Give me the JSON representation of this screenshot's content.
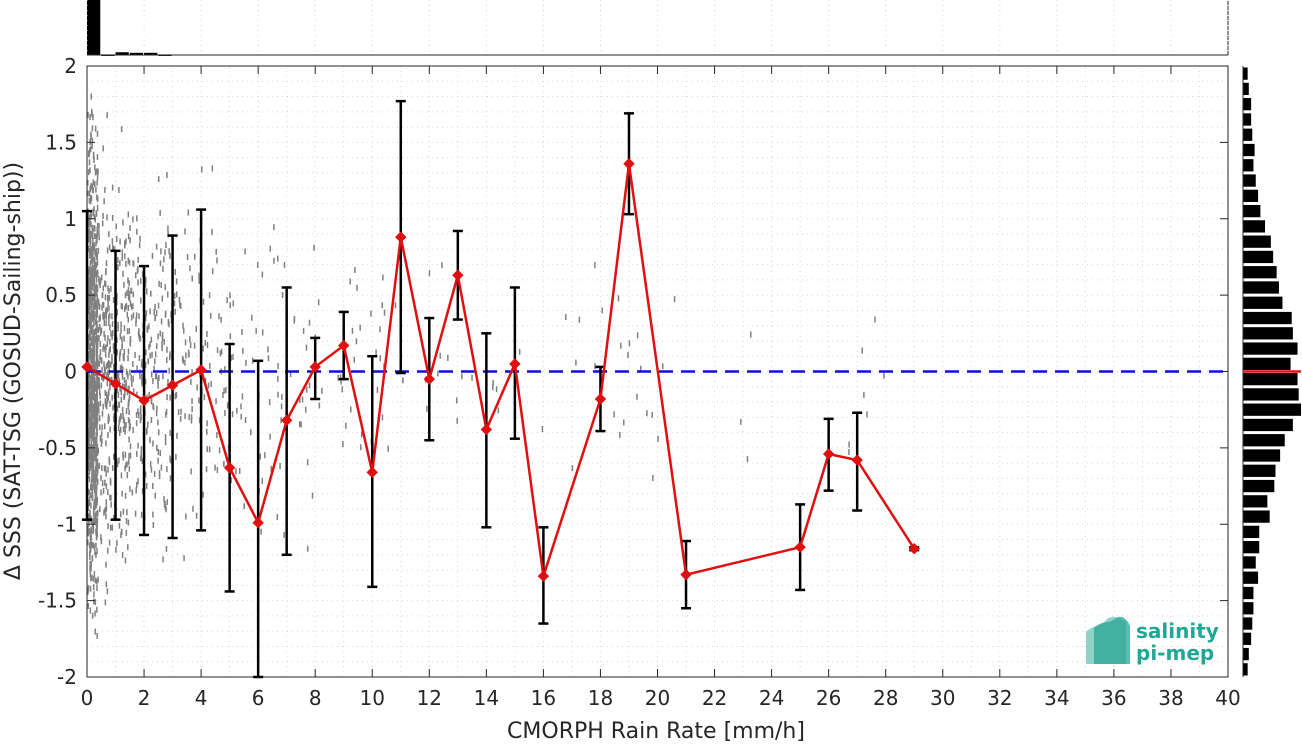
{
  "chart_data": {
    "type": "line",
    "xlabel": "CMORPH Rain Rate [mm/h]",
    "ylabel": "Δ SSS (SAT-TSG (GOSUD-Sailing-ship))",
    "xlim": [
      0,
      40
    ],
    "ylim": [
      -2,
      2
    ],
    "x_ticks": [
      0,
      2,
      4,
      6,
      8,
      10,
      12,
      14,
      16,
      18,
      20,
      22,
      24,
      26,
      28,
      30,
      32,
      34,
      36,
      38,
      40
    ],
    "y_ticks": [
      -2,
      -1.5,
      -1,
      -0.5,
      0,
      0.5,
      1,
      1.5,
      2
    ],
    "y_tick_labels": [
      "-2",
      "-1.5",
      "-1",
      "-0.5",
      "0",
      "0.5",
      "1",
      "1.5",
      "2"
    ],
    "grid": "dotted",
    "reference_line": {
      "y": 0,
      "color": "#1010d0",
      "style": "dashed"
    },
    "series": [
      {
        "color": "#e01010",
        "marker": "diamond",
        "x": [
          0,
          1,
          2,
          3,
          4,
          5,
          6,
          7,
          8,
          9,
          10,
          11,
          12,
          13,
          14,
          15,
          16,
          18,
          19,
          21,
          25,
          26,
          27,
          29
        ],
        "y": [
          0.03,
          -0.08,
          -0.19,
          -0.09,
          0.01,
          -0.63,
          -0.99,
          -0.32,
          0.03,
          0.17,
          -0.66,
          0.88,
          -0.05,
          0.63,
          -0.38,
          0.05,
          -1.34,
          -0.18,
          1.36,
          -1.33,
          -1.15,
          -0.54,
          -0.58,
          -1.16
        ],
        "err_low": [
          -0.97,
          -0.97,
          -1.07,
          -1.09,
          -1.04,
          -1.44,
          -2.0,
          -1.2,
          -0.18,
          -0.05,
          -1.41,
          -0.01,
          -0.45,
          0.34,
          -1.02,
          -0.44,
          -1.65,
          -0.39,
          1.03,
          -1.55,
          -1.43,
          -0.78,
          -0.91,
          -1.17
        ],
        "err_high": [
          1.05,
          0.79,
          0.69,
          0.89,
          1.06,
          0.18,
          0.07,
          0.55,
          0.22,
          0.39,
          0.1,
          1.77,
          0.35,
          0.92,
          0.25,
          0.55,
          -1.02,
          0.03,
          1.69,
          -1.11,
          -0.87,
          -0.31,
          -0.27,
          -1.15
        ]
      }
    ],
    "top_histogram": {
      "bin_width": 0.5,
      "bins": [
        0,
        0.5,
        1,
        1.5,
        2,
        2.5
      ],
      "relative_counts": [
        1.0,
        0.01,
        0.05,
        0.04,
        0.04,
        0.01
      ]
    },
    "right_histogram": {
      "bin_width": 0.1,
      "bin_centers": [
        1.95,
        1.85,
        1.75,
        1.65,
        1.55,
        1.45,
        1.35,
        1.25,
        1.15,
        1.05,
        0.95,
        0.85,
        0.75,
        0.65,
        0.55,
        0.45,
        0.35,
        0.25,
        0.15,
        0.05,
        -0.05,
        -0.15,
        -0.25,
        -0.35,
        -0.45,
        -0.55,
        -0.65,
        -0.75,
        -0.85,
        -0.95,
        -1.05,
        -1.15,
        -1.25,
        -1.35,
        -1.45,
        -1.55,
        -1.65,
        -1.75,
        -1.85,
        -1.95
      ],
      "relative_counts": [
        0.08,
        0.1,
        0.14,
        0.14,
        0.16,
        0.2,
        0.18,
        0.22,
        0.26,
        0.3,
        0.38,
        0.48,
        0.52,
        0.58,
        0.62,
        0.68,
        0.84,
        0.86,
        0.94,
        0.82,
        0.94,
        0.96,
        1.0,
        0.86,
        0.72,
        0.64,
        0.56,
        0.54,
        0.42,
        0.46,
        0.28,
        0.28,
        0.22,
        0.26,
        0.18,
        0.18,
        0.16,
        0.14,
        0.1,
        0.08
      ],
      "median": 0
    },
    "logo": {
      "line1": "salinity",
      "line2": "pi-mep"
    }
  }
}
